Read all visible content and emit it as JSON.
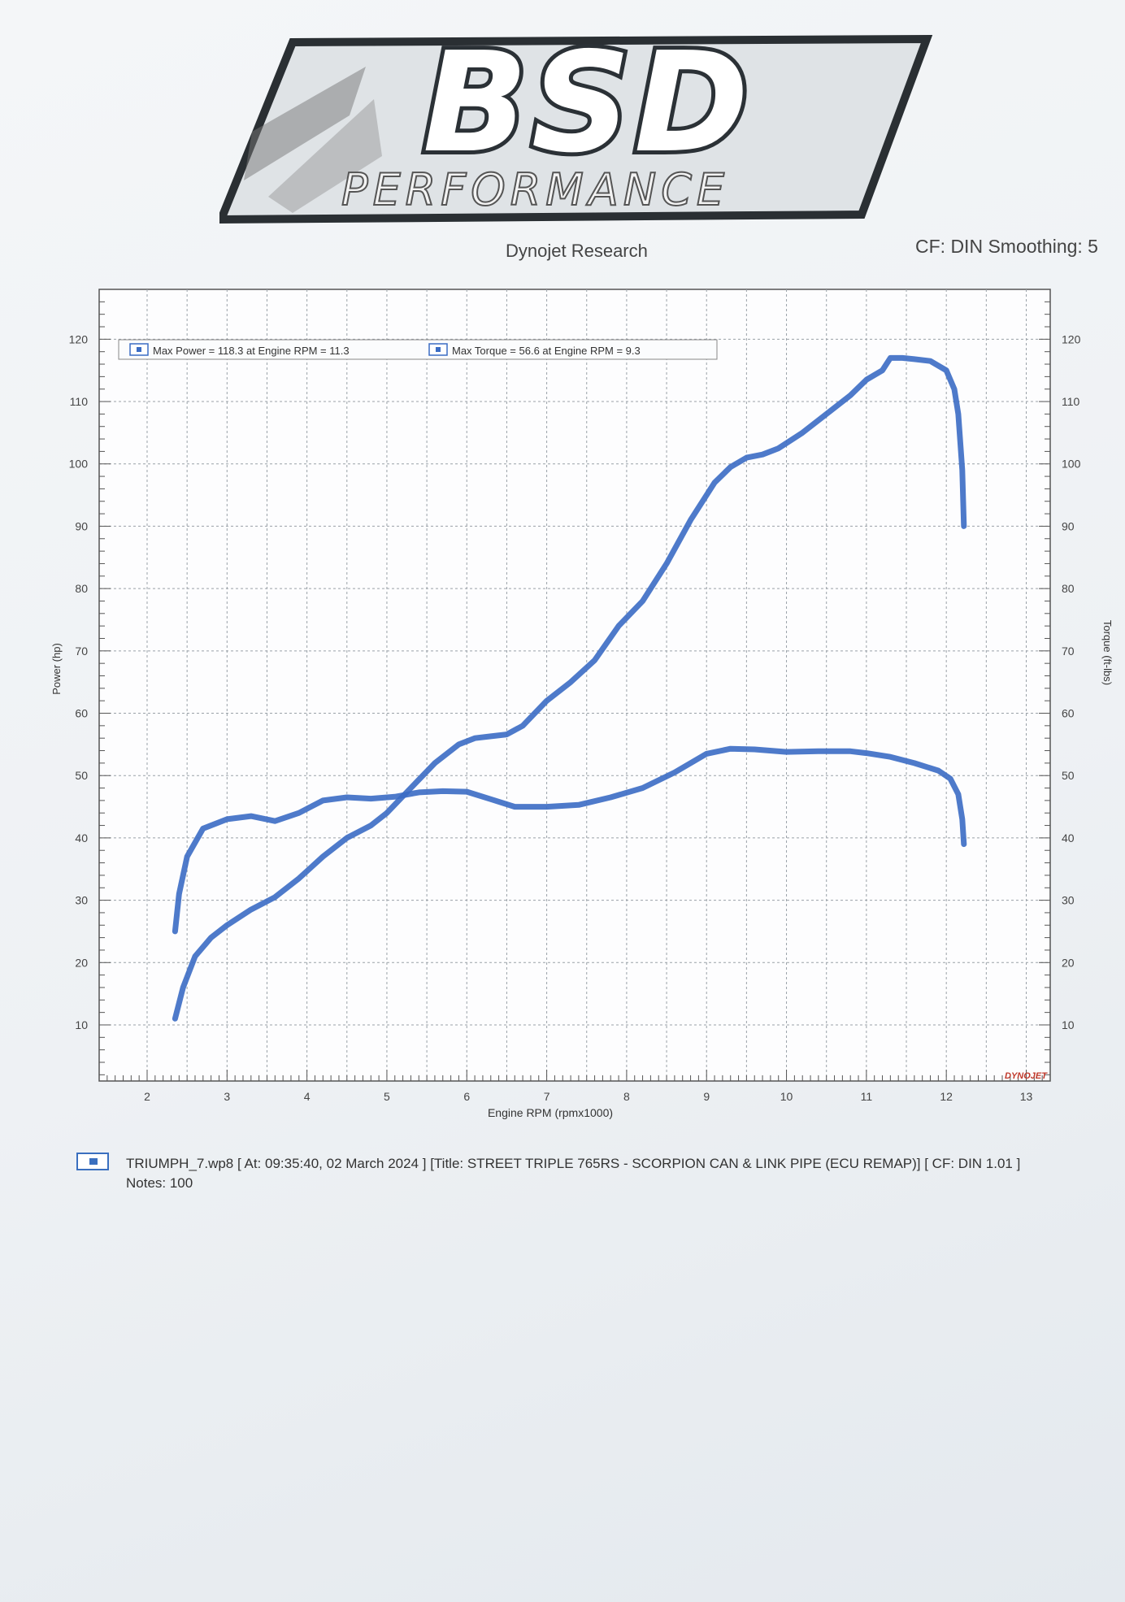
{
  "logo": {
    "word": "BSD",
    "subtitle": "PERFORMANCE"
  },
  "header": {
    "title": "Dynojet Research",
    "cf": "CF: DIN Smoothing: 5"
  },
  "chart_data": {
    "type": "line",
    "xlabel": "Engine RPM (rpmx1000)",
    "ylabel_left": "Power (hp)",
    "ylabel_right": "Torque (ft-lbs)",
    "xlim": [
      1.4,
      13.3
    ],
    "ylim": [
      1,
      128
    ],
    "x_ticks": [
      2,
      3,
      4,
      5,
      6,
      7,
      8,
      9,
      10,
      11,
      12,
      13
    ],
    "y_ticks": [
      10,
      20,
      30,
      40,
      50,
      60,
      70,
      80,
      90,
      100,
      110,
      120
    ],
    "grid": true,
    "legend": [
      "Max Power = 118.3 at Engine RPM = 11.3",
      "Max Torque = 56.6 at Engine RPM = 9.3"
    ],
    "legend_position": "top-left",
    "watermark": "DYNOJET",
    "color": "#3b6cc4",
    "series": [
      {
        "name": "Power",
        "points": [
          [
            2.35,
            11
          ],
          [
            2.45,
            16
          ],
          [
            2.6,
            21
          ],
          [
            2.8,
            24
          ],
          [
            3.0,
            26
          ],
          [
            3.3,
            28.5
          ],
          [
            3.6,
            30.5
          ],
          [
            3.9,
            33.5
          ],
          [
            4.2,
            37
          ],
          [
            4.5,
            40
          ],
          [
            4.8,
            42
          ],
          [
            5.0,
            44
          ],
          [
            5.3,
            48
          ],
          [
            5.6,
            52
          ],
          [
            5.9,
            55
          ],
          [
            6.1,
            56
          ],
          [
            6.3,
            56.3
          ],
          [
            6.5,
            56.6
          ],
          [
            6.7,
            58
          ],
          [
            7.0,
            62
          ],
          [
            7.3,
            65
          ],
          [
            7.6,
            68.5
          ],
          [
            7.9,
            74
          ],
          [
            8.2,
            78
          ],
          [
            8.5,
            84
          ],
          [
            8.8,
            91
          ],
          [
            9.1,
            97
          ],
          [
            9.3,
            99.5
          ],
          [
            9.5,
            101
          ],
          [
            9.7,
            101.5
          ],
          [
            9.9,
            102.5
          ],
          [
            10.2,
            105
          ],
          [
            10.5,
            108
          ],
          [
            10.8,
            111
          ],
          [
            11.0,
            113.5
          ],
          [
            11.2,
            115
          ],
          [
            11.3,
            117
          ],
          [
            11.45,
            117
          ],
          [
            11.6,
            116.8
          ],
          [
            11.8,
            116.5
          ],
          [
            12.0,
            115
          ],
          [
            12.1,
            112
          ],
          [
            12.15,
            108
          ],
          [
            12.2,
            99
          ],
          [
            12.22,
            90
          ]
        ]
      },
      {
        "name": "Torque",
        "points": [
          [
            2.35,
            25
          ],
          [
            2.4,
            31
          ],
          [
            2.5,
            37
          ],
          [
            2.7,
            41.5
          ],
          [
            3.0,
            43
          ],
          [
            3.3,
            43.5
          ],
          [
            3.6,
            42.7
          ],
          [
            3.9,
            44
          ],
          [
            4.2,
            46
          ],
          [
            4.5,
            46.5
          ],
          [
            4.8,
            46.3
          ],
          [
            5.1,
            46.6
          ],
          [
            5.4,
            47.3
          ],
          [
            5.7,
            47.5
          ],
          [
            6.0,
            47.4
          ],
          [
            6.3,
            46.2
          ],
          [
            6.6,
            45
          ],
          [
            7.0,
            45
          ],
          [
            7.4,
            45.3
          ],
          [
            7.8,
            46.5
          ],
          [
            8.2,
            48
          ],
          [
            8.6,
            50.5
          ],
          [
            9.0,
            53.5
          ],
          [
            9.3,
            54.3
          ],
          [
            9.6,
            54.2
          ],
          [
            10.0,
            53.8
          ],
          [
            10.4,
            53.9
          ],
          [
            10.8,
            53.9
          ],
          [
            11.0,
            53.6
          ],
          [
            11.3,
            53
          ],
          [
            11.6,
            52
          ],
          [
            11.9,
            50.8
          ],
          [
            12.05,
            49.5
          ],
          [
            12.15,
            47
          ],
          [
            12.2,
            43
          ],
          [
            12.22,
            39
          ]
        ]
      }
    ]
  },
  "footer": {
    "run": "TRIUMPH_7.wp8 [ At: 09:35:40, 02 March 2024 ] [Title: STREET TRIPLE 765RS - SCORPION CAN & LINK PIPE (ECU REMAP)]  [ CF: DIN 1.01 ]",
    "notes": "Notes: 100"
  }
}
